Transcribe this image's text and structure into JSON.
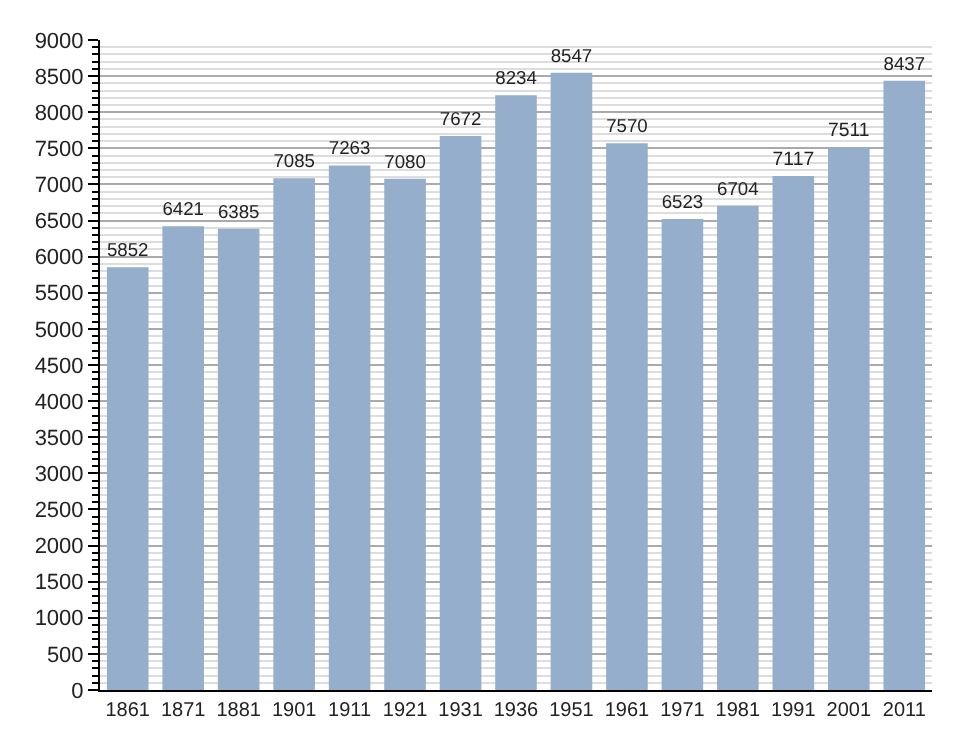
{
  "chart_data": {
    "type": "bar",
    "categories": [
      "1861",
      "1871",
      "1881",
      "1901",
      "1911",
      "1921",
      "1931",
      "1936",
      "1951",
      "1961",
      "1971",
      "1981",
      "1991",
      "2001",
      "2011"
    ],
    "values": [
      5852,
      6421,
      6385,
      7085,
      7263,
      7080,
      7672,
      8234,
      8547,
      7570,
      6523,
      6704,
      7117,
      7511,
      8437
    ],
    "color": "#94aecb",
    "ylim": [
      0,
      9000
    ],
    "yticks": [
      0,
      500,
      1000,
      1500,
      2000,
      2500,
      3000,
      3500,
      4000,
      4500,
      5000,
      5500,
      6000,
      6500,
      7000,
      7500,
      8000,
      8500,
      9000
    ],
    "grid": "y",
    "data_labels": true
  }
}
